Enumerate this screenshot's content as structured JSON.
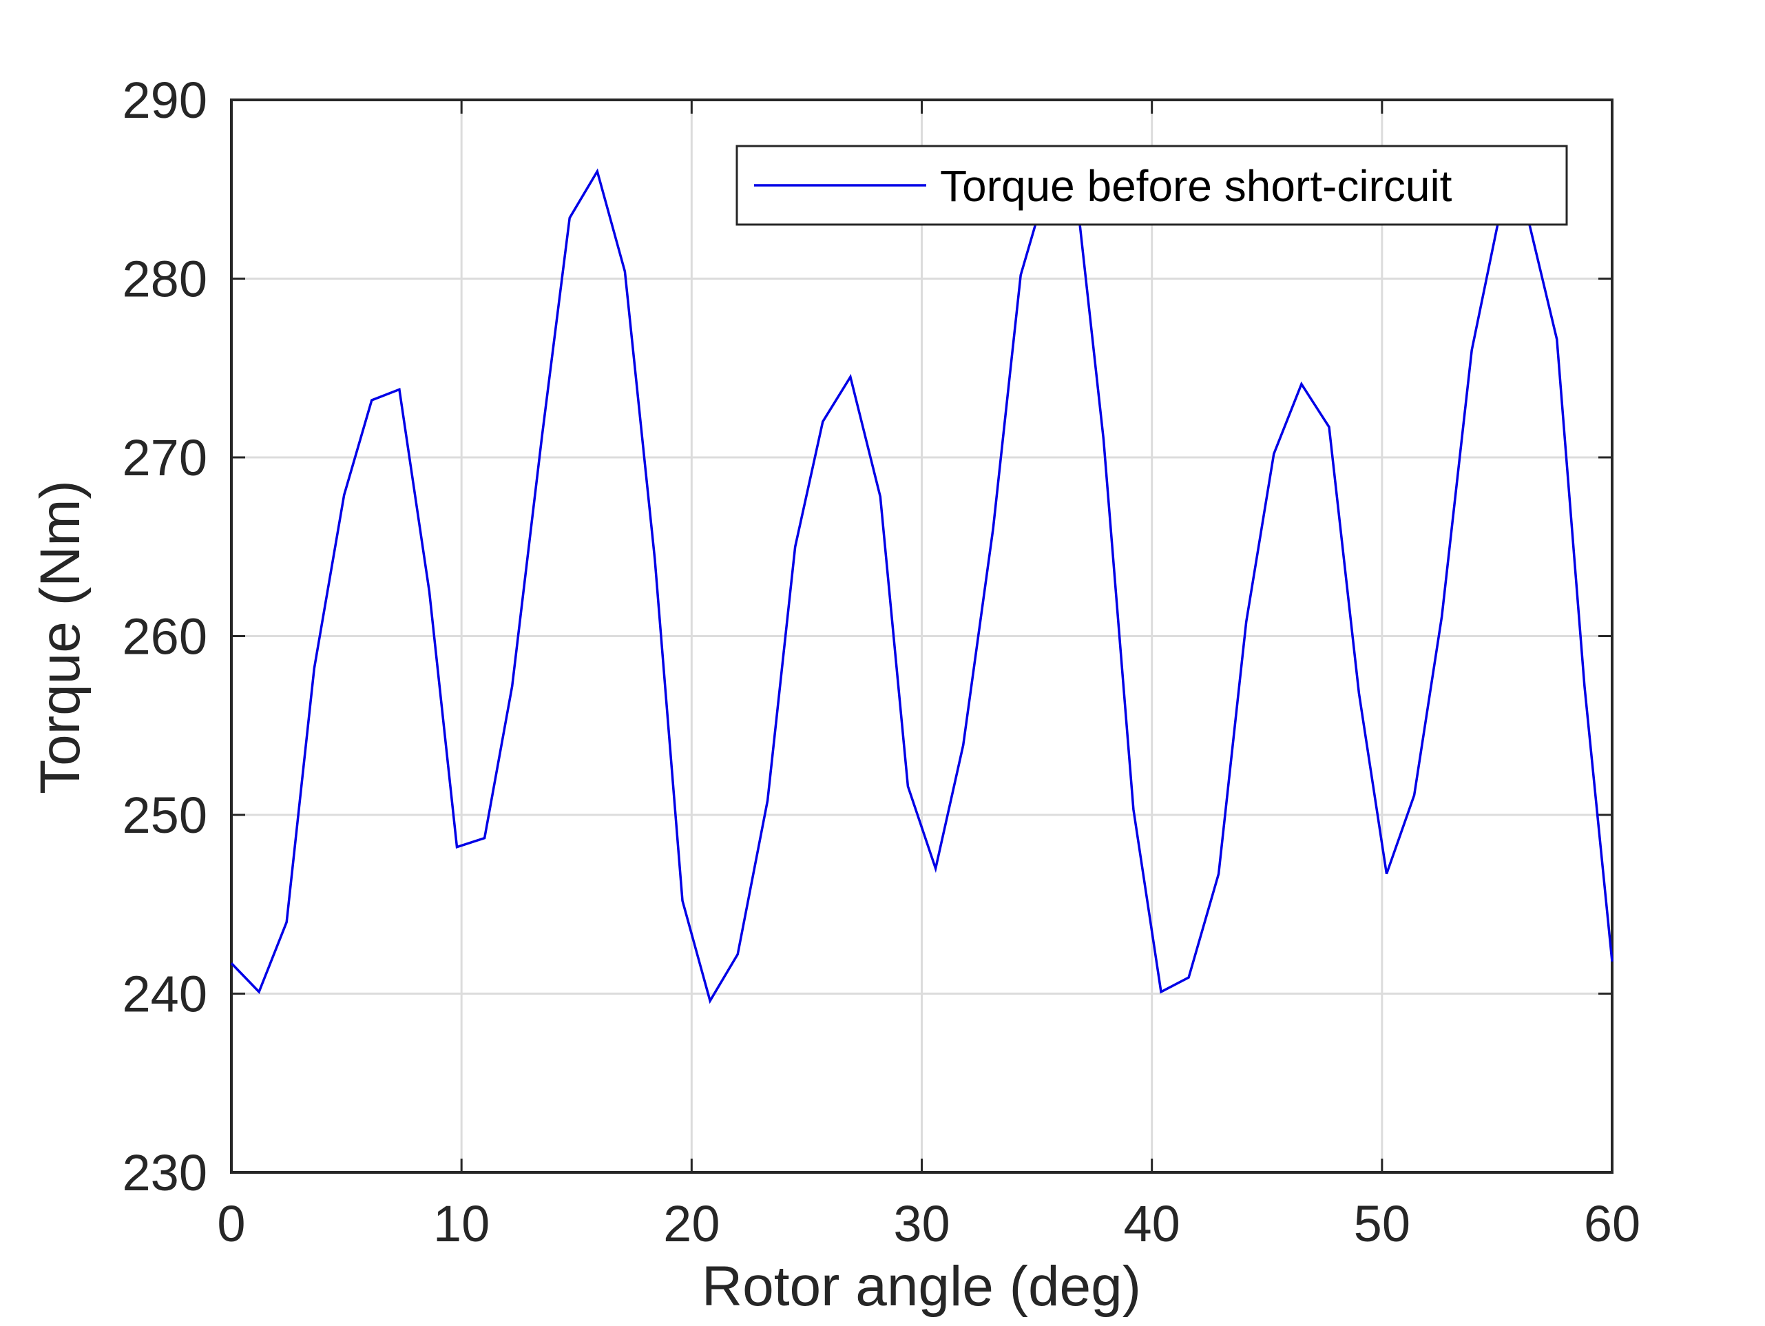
{
  "chart_data": {
    "type": "line",
    "title": "",
    "xlabel": "Rotor angle (deg)",
    "ylabel": "Torque (Nm)",
    "xlim": [
      0,
      60
    ],
    "ylim": [
      230,
      290
    ],
    "xticks": [
      0,
      10,
      20,
      30,
      40,
      50,
      60
    ],
    "yticks": [
      230,
      240,
      250,
      260,
      270,
      280,
      290
    ],
    "grid": true,
    "legend_position": "upper right",
    "series": [
      {
        "name": "Torque before short-circuit",
        "color": "#0000e6",
        "x": [
          0,
          1.2,
          2.4,
          3.6,
          4.9,
          6.1,
          7.3,
          8.6,
          9.8,
          11.0,
          12.2,
          13.5,
          14.7,
          15.9,
          17.1,
          18.4,
          19.6,
          20.8,
          22.0,
          23.3,
          24.5,
          25.7,
          26.9,
          28.2,
          29.4,
          30.6,
          31.8,
          33.1,
          34.3,
          35.5,
          36.7,
          37.9,
          39.2,
          40.4,
          41.6,
          42.9,
          44.1,
          45.3,
          46.5,
          47.7,
          49.0,
          50.2,
          51.4,
          52.6,
          53.9,
          55.1,
          56.3,
          57.6,
          58.8,
          60.0
        ],
        "y": [
          241.7,
          240.1,
          244.0,
          258.2,
          267.9,
          273.2,
          273.8,
          262.5,
          248.2,
          248.7,
          257.2,
          271.2,
          283.4,
          286.0,
          280.4,
          264.3,
          245.2,
          239.6,
          242.2,
          250.8,
          265.0,
          272.0,
          274.5,
          267.8,
          251.6,
          247.0,
          253.9,
          266.0,
          280.2,
          285.5,
          285.0,
          271.0,
          250.3,
          240.1,
          240.9,
          246.7,
          260.8,
          270.2,
          274.1,
          271.7,
          256.8,
          246.7,
          251.1,
          261.1,
          276.0,
          283.5,
          283.6,
          276.6,
          257.2,
          241.8
        ]
      }
    ]
  }
}
